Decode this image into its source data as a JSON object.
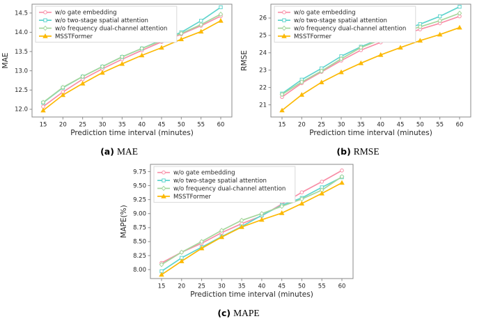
{
  "colors": {
    "pink": "#f88da6",
    "cyan": "#5fd4cd",
    "green": "#a5d69c",
    "orange": "#fcb905",
    "axis": "#8a8a8a",
    "text": "#262626",
    "legend_border": "#d9d9d9"
  },
  "chart_data": [
    {
      "type": "line",
      "caption_prefix": "(a)",
      "caption_label": "MAE",
      "title": "",
      "xlabel": "Prediction time interval (minutes)",
      "ylabel": "MAE",
      "x": [
        15,
        20,
        25,
        30,
        35,
        40,
        45,
        50,
        55,
        60
      ],
      "ylim": [
        11.8,
        14.73
      ],
      "yticks": [
        12.0,
        12.5,
        13.0,
        13.5,
        14.0,
        14.5
      ],
      "ytick_labels": [
        "12.0",
        "12.5",
        "13.0",
        "13.5",
        "14.0",
        "14.5"
      ],
      "legend_position": "upper left",
      "grid": false,
      "series": [
        {
          "name": "w/o gate embedding",
          "color_key": "pink",
          "marker": "circle",
          "values": [
            12.07,
            12.45,
            12.78,
            13.05,
            13.3,
            13.53,
            13.75,
            13.95,
            14.17,
            14.42
          ]
        },
        {
          "name": "w/o two-stage spatial attention",
          "color_key": "cyan",
          "marker": "square",
          "values": [
            12.17,
            12.56,
            12.85,
            13.11,
            13.36,
            13.58,
            13.8,
            14.0,
            14.3,
            14.65
          ]
        },
        {
          "name": "w/o frequency dual-channel attention",
          "color_key": "green",
          "marker": "diamond",
          "values": [
            12.18,
            12.57,
            12.85,
            13.11,
            13.36,
            13.58,
            13.78,
            13.97,
            14.2,
            14.47
          ]
        },
        {
          "name": "MSSTFormer",
          "color_key": "orange",
          "marker": "triangle",
          "values": [
            11.97,
            12.37,
            12.67,
            12.95,
            13.18,
            13.4,
            13.6,
            13.82,
            14.02,
            14.3
          ]
        }
      ]
    },
    {
      "type": "line",
      "caption_prefix": "(b)",
      "caption_label": "RMSE",
      "title": "",
      "xlabel": "Prediction time interval (minutes)",
      "ylabel": "RMSE",
      "x": [
        15,
        20,
        25,
        30,
        35,
        40,
        45,
        50,
        55,
        60
      ],
      "ylim": [
        20.3,
        26.8
      ],
      "yticks": [
        21,
        22,
        23,
        24,
        25,
        26
      ],
      "ytick_labels": [
        "21",
        "22",
        "23",
        "24",
        "25",
        "26"
      ],
      "legend_position": "upper left",
      "grid": false,
      "series": [
        {
          "name": "w/o gate embedding",
          "color_key": "pink",
          "marker": "circle",
          "values": [
            21.45,
            22.25,
            22.9,
            23.55,
            24.15,
            24.6,
            25.0,
            25.35,
            25.7,
            26.1
          ]
        },
        {
          "name": "w/o two-stage spatial attention",
          "color_key": "cyan",
          "marker": "square",
          "values": [
            21.65,
            22.45,
            23.1,
            23.8,
            24.35,
            24.8,
            25.25,
            25.65,
            26.1,
            26.65
          ]
        },
        {
          "name": "w/o frequency dual-channel attention",
          "color_key": "green",
          "marker": "diamond",
          "values": [
            21.6,
            22.32,
            22.95,
            23.65,
            24.3,
            24.75,
            25.15,
            25.5,
            25.85,
            26.28
          ]
        },
        {
          "name": "MSSTFormer",
          "color_key": "orange",
          "marker": "triangle",
          "values": [
            20.68,
            21.58,
            22.3,
            22.88,
            23.4,
            23.88,
            24.3,
            24.7,
            25.05,
            25.45
          ]
        }
      ]
    },
    {
      "type": "line",
      "caption_prefix": "(c)",
      "caption_label": "MAPE",
      "title": "",
      "xlabel": "Prediction time interval (minutes)",
      "ylabel": "MAPE(%)",
      "x": [
        15,
        20,
        25,
        30,
        35,
        40,
        45,
        50,
        55,
        60
      ],
      "ylim": [
        7.84,
        9.88
      ],
      "yticks": [
        8.0,
        8.25,
        8.5,
        8.75,
        9.0,
        9.25,
        9.5,
        9.75
      ],
      "ytick_labels": [
        "8.00",
        "8.25",
        "8.50",
        "8.75",
        "9.00",
        "9.25",
        "9.50",
        "9.75"
      ],
      "legend_position": "upper left",
      "grid": false,
      "series": [
        {
          "name": "w/o gate embedding",
          "color_key": "pink",
          "marker": "circle",
          "values": [
            8.12,
            8.31,
            8.47,
            8.66,
            8.82,
            8.96,
            9.17,
            9.38,
            9.57,
            9.77
          ]
        },
        {
          "name": "w/o two-stage spatial attention",
          "color_key": "cyan",
          "marker": "square",
          "values": [
            7.97,
            8.21,
            8.4,
            8.59,
            8.77,
            8.97,
            9.15,
            9.28,
            9.47,
            9.65
          ]
        },
        {
          "name": "w/o frequency dual-channel attention",
          "color_key": "green",
          "marker": "diamond",
          "values": [
            8.09,
            8.31,
            8.5,
            8.7,
            8.88,
            9.0,
            9.13,
            9.26,
            9.42,
            9.66
          ]
        },
        {
          "name": "MSSTFormer",
          "color_key": "orange",
          "marker": "triangle",
          "values": [
            7.91,
            8.15,
            8.38,
            8.58,
            8.76,
            8.89,
            9.01,
            9.18,
            9.36,
            9.55
          ]
        }
      ]
    }
  ]
}
